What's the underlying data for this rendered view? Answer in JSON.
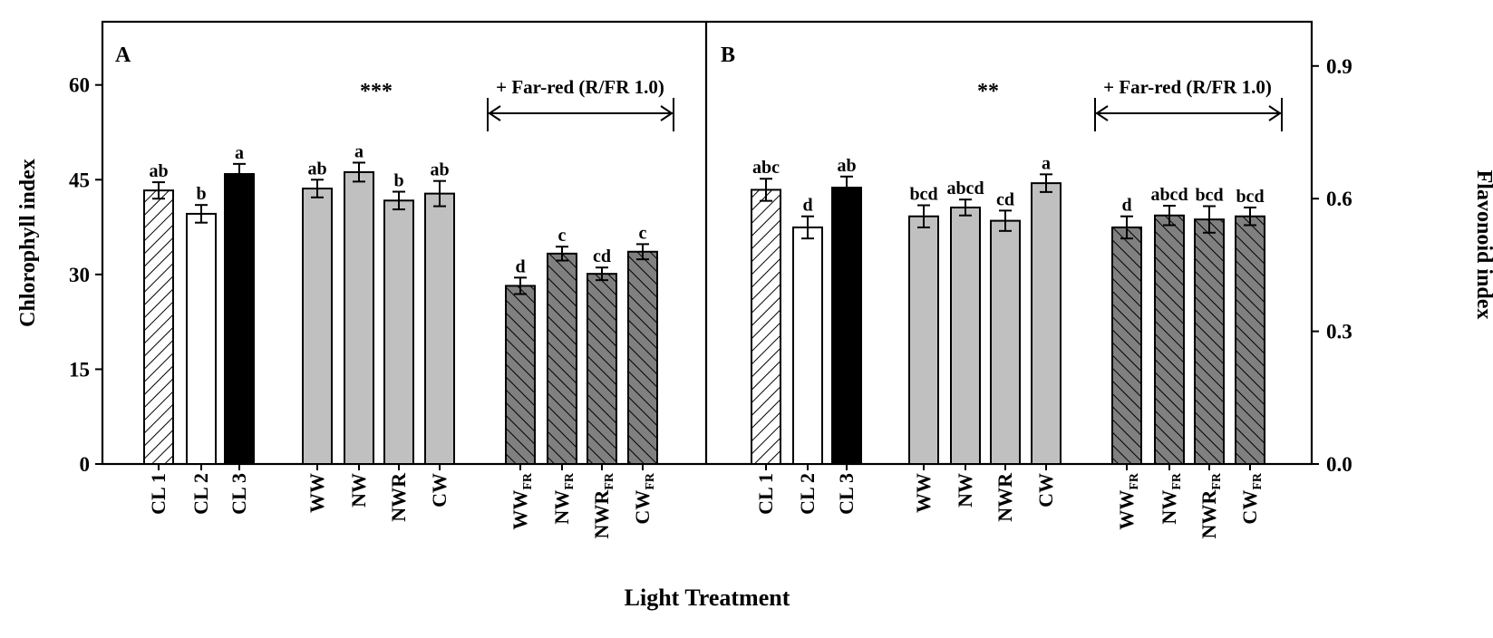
{
  "chart_data": [
    {
      "panel": "A",
      "type": "bar",
      "title": "",
      "ylabel": "Chlorophyll index",
      "ylim": [
        0,
        70
      ],
      "yticks": [
        "0",
        "15",
        "30",
        "45",
        "60"
      ],
      "ytick_values": [
        0,
        15,
        30,
        45,
        60
      ],
      "significance": "***",
      "bracket_label": "+ Far-red (R/FR 1.0)",
      "categories": [
        "CL 1",
        "CL 2",
        "CL 3",
        "WW",
        "NW",
        "NWR",
        "CW",
        "WW",
        "NW",
        "NWR",
        "CW"
      ],
      "subscripts": [
        "",
        "",
        "",
        "",
        "",
        "",
        "",
        "FR",
        "FR",
        "FR",
        "FR"
      ],
      "styles": [
        "hatch-light",
        "white",
        "black",
        "gray",
        "gray",
        "gray",
        "gray",
        "hatch-dark",
        "hatch-dark",
        "hatch-dark",
        "hatch-dark"
      ],
      "values": [
        43.3,
        39.6,
        45.9,
        43.6,
        46.2,
        41.7,
        42.8,
        28.2,
        33.3,
        30.1,
        33.6
      ],
      "errors": [
        1.3,
        1.4,
        1.6,
        1.4,
        1.5,
        1.4,
        2.0,
        1.3,
        1.1,
        1.0,
        1.2
      ],
      "letters": [
        "ab",
        "b",
        "a",
        "ab",
        "a",
        "b",
        "ab",
        "d",
        "c",
        "cd",
        "c"
      ]
    },
    {
      "panel": "B",
      "type": "bar",
      "title": "",
      "ylabel": "Flavonoid index",
      "ylim": [
        0,
        1.0
      ],
      "yticks": [
        "0.0",
        "0.3",
        "0.6",
        "0.9"
      ],
      "ytick_values": [
        0.0,
        0.3,
        0.6,
        0.9
      ],
      "significance": "**",
      "bracket_label": "+ Far-red (R/FR 1.0)",
      "categories": [
        "CL 1",
        "CL 2",
        "CL 3",
        "WW",
        "NW",
        "NWR",
        "CW",
        "WW",
        "NW",
        "NWR",
        "CW"
      ],
      "subscripts": [
        "",
        "",
        "",
        "",
        "",
        "",
        "",
        "FR",
        "FR",
        "FR",
        "FR"
      ],
      "styles": [
        "hatch-light",
        "white",
        "black",
        "gray",
        "gray",
        "gray",
        "gray",
        "hatch-dark",
        "hatch-dark",
        "hatch-dark",
        "hatch-dark"
      ],
      "values": [
        0.62,
        0.535,
        0.625,
        0.56,
        0.58,
        0.55,
        0.635,
        0.535,
        0.562,
        0.553,
        0.56
      ],
      "errors": [
        0.025,
        0.025,
        0.025,
        0.025,
        0.018,
        0.023,
        0.02,
        0.025,
        0.022,
        0.03,
        0.02
      ],
      "letters": [
        "abc",
        "d",
        "ab",
        "bcd",
        "abcd",
        "cd",
        "a",
        "d",
        "abcd",
        "bcd",
        "bcd"
      ]
    }
  ],
  "xlabel": "Light Treatment",
  "colors": {
    "gray": "#c0c0c0",
    "dark_gray": "#808080",
    "black": "#000000",
    "white": "#ffffff"
  }
}
